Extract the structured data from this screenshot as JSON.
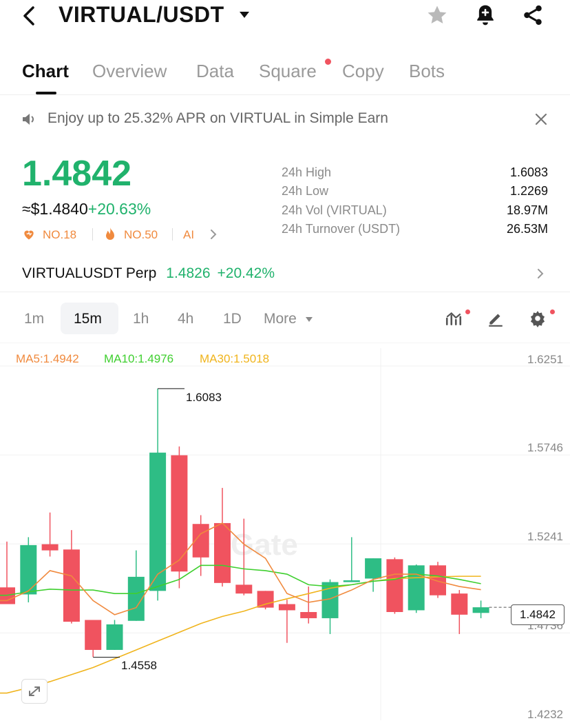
{
  "header": {
    "pair": "VIRTUAL/USDT",
    "icons": [
      "back-icon",
      "caret-down-icon",
      "star-icon",
      "bell-plus-icon",
      "share-icon"
    ]
  },
  "tabs": [
    {
      "label": "Chart",
      "active": true
    },
    {
      "label": "Overview"
    },
    {
      "label": "Data"
    },
    {
      "label": "Square",
      "badge_dot": true
    },
    {
      "label": "Copy"
    },
    {
      "label": "Bots"
    }
  ],
  "banner": {
    "icon": "speaker-icon",
    "text": "Enjoy up to 25.32% APR on VIRTUAL in Simple Earn",
    "close_icon": "close-icon"
  },
  "ticker": {
    "last_price": "1.4842",
    "fiat_price": "≈$1.4840",
    "change": "+20.63%",
    "rank_heart": "NO.18",
    "rank_fire": "NO.50",
    "ai_label": "AI",
    "stats": [
      {
        "label": "24h High",
        "value": "1.6083"
      },
      {
        "label": "24h Low",
        "value": "1.2269"
      },
      {
        "label": "24h Vol (VIRTUAL)",
        "value": "18.97M"
      },
      {
        "label": "24h Turnover (USDT)",
        "value": "26.53M"
      }
    ]
  },
  "perp": {
    "name": "VIRTUALUSDT Perp",
    "price": "1.4826",
    "change": "+20.42%"
  },
  "intervals": {
    "items": [
      "1m",
      "15m",
      "1h",
      "4h",
      "1D",
      "More"
    ],
    "active": "15m"
  },
  "toolbar_icons": [
    "indicators-icon",
    "draw-pen-icon",
    "settings-gear-icon"
  ],
  "ma_legend": [
    {
      "label": "MA5:1.4942",
      "color": "#f08a3e"
    },
    {
      "label": "MA10:1.4976",
      "color": "#3fcf2f"
    },
    {
      "label": "MA30:1.5018",
      "color": "#f0b41c"
    }
  ],
  "watermark": "Gate",
  "chart_data": {
    "type": "candlestick",
    "y_ticks": [
      "1.6251",
      "1.5746",
      "1.5241",
      "1.4736",
      "1.4232"
    ],
    "ylim": [
      1.4232,
      1.6251
    ],
    "current_price": "1.4842",
    "high_label": "1.6083",
    "low_label": "1.4558",
    "up_color": "#2ebd85",
    "down_color": "#f0535f",
    "candles": [
      {
        "o": 1.4955,
        "h": 1.5215,
        "l": 1.486,
        "c": 1.486
      },
      {
        "o": 1.4915,
        "h": 1.524,
        "l": 1.487,
        "c": 1.5195
      },
      {
        "o": 1.52,
        "h": 1.538,
        "l": 1.513,
        "c": 1.5165
      },
      {
        "o": 1.517,
        "h": 1.528,
        "l": 1.475,
        "c": 1.476
      },
      {
        "o": 1.477,
        "h": 1.477,
        "l": 1.456,
        "c": 1.46
      },
      {
        "o": 1.46,
        "h": 1.477,
        "l": 1.46,
        "c": 1.4745
      },
      {
        "o": 1.4765,
        "h": 1.5165,
        "l": 1.4765,
        "c": 1.5015
      },
      {
        "o": 1.4935,
        "h": 1.6083,
        "l": 1.488,
        "c": 1.572
      },
      {
        "o": 1.5705,
        "h": 1.5755,
        "l": 1.495,
        "c": 1.5045
      },
      {
        "o": 1.5315,
        "h": 1.5365,
        "l": 1.502,
        "c": 1.5125
      },
      {
        "o": 1.532,
        "h": 1.552,
        "l": 1.496,
        "c": 1.498
      },
      {
        "o": 1.497,
        "h": 1.5345,
        "l": 1.491,
        "c": 1.492
      },
      {
        "o": 1.4935,
        "h": 1.4935,
        "l": 1.483,
        "c": 1.484
      },
      {
        "o": 1.486,
        "h": 1.4885,
        "l": 1.464,
        "c": 1.4825
      },
      {
        "o": 1.4815,
        "h": 1.496,
        "l": 1.475,
        "c": 1.478
      },
      {
        "o": 1.478,
        "h": 1.5,
        "l": 1.469,
        "c": 1.4985
      },
      {
        "o": 1.4985,
        "h": 1.524,
        "l": 1.4985,
        "c": 1.4995
      },
      {
        "o": 1.5005,
        "h": 1.512,
        "l": 1.493,
        "c": 1.512
      },
      {
        "o": 1.5115,
        "h": 1.5125,
        "l": 1.4805,
        "c": 1.4815
      },
      {
        "o": 1.4825,
        "h": 1.5085,
        "l": 1.481,
        "c": 1.508
      },
      {
        "o": 1.508,
        "h": 1.51,
        "l": 1.4895,
        "c": 1.491
      },
      {
        "o": 1.492,
        "h": 1.494,
        "l": 1.469,
        "c": 1.48
      },
      {
        "o": 1.481,
        "h": 1.488,
        "l": 1.478,
        "c": 1.4842
      }
    ],
    "ma5": [
      1.488,
      1.4935,
      1.505,
      1.502,
      1.488,
      1.48,
      1.484,
      1.503,
      1.511,
      1.526,
      1.532,
      1.52,
      1.512,
      1.492,
      1.487,
      1.489,
      1.494,
      1.5,
      1.503,
      1.503,
      1.499,
      1.496,
      1.4942
    ],
    "ma10": [
      1.491,
      1.493,
      1.4945,
      1.494,
      1.494,
      1.492,
      1.492,
      1.496,
      1.5,
      1.508,
      1.508,
      1.506,
      1.505,
      1.503,
      1.497,
      1.496,
      1.497,
      1.499,
      1.5,
      1.503,
      1.502,
      1.5,
      1.4976
    ],
    "ma30": [
      1.4355,
      1.4385,
      1.442,
      1.446,
      1.45,
      1.455,
      1.46,
      1.465,
      1.47,
      1.475,
      1.479,
      1.482,
      1.486,
      1.489,
      1.492,
      1.495,
      1.497,
      1.499,
      1.5005,
      1.501,
      1.5015,
      1.5018,
      1.5018
    ]
  }
}
